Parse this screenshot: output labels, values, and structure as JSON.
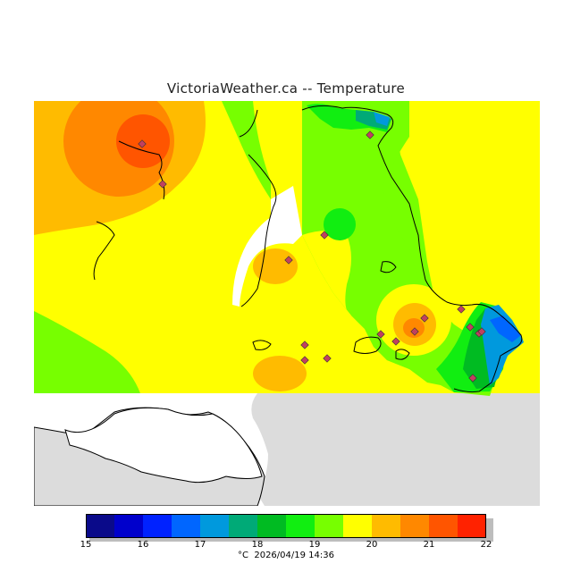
{
  "title": "VictoriaWeather.ca -- Temperature",
  "legend": {
    "colors": [
      "#0a0a8a",
      "#0000cc",
      "#0022ff",
      "#0066ff",
      "#0099dd",
      "#00aa77",
      "#00bb22",
      "#11ee11",
      "#77ff00",
      "#ffff00",
      "#ffbb00",
      "#ff8800",
      "#ff5500",
      "#ff2200"
    ],
    "ticks": [
      "15",
      "16",
      "17",
      "18",
      "19",
      "20",
      "21",
      "22"
    ],
    "unit": "°C",
    "timestamp": "2026/04/19 14:36"
  },
  "colors": {
    "background": "#dcdcdc",
    "water": "#ffffff",
    "coast": "#000000",
    "station_marker": "#c04060"
  }
}
